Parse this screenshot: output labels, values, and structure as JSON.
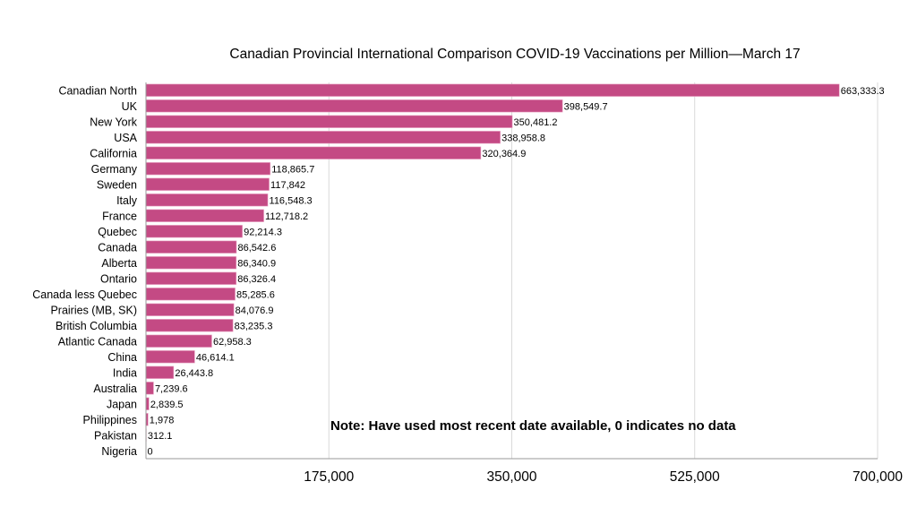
{
  "chart_data": {
    "type": "bar",
    "orientation": "horizontal",
    "title": "Canadian Provincial International Comparison COVID-19 Vaccinations per Million—March 17",
    "xlabel": "",
    "ylabel": "",
    "xlim": [
      0,
      700000
    ],
    "xticks": [
      175000,
      350000,
      525000,
      700000
    ],
    "xtick_labels": [
      "175,000",
      "350,000",
      "525,000",
      "700,000"
    ],
    "grid": "vertical",
    "bar_color": "#C44A84",
    "categories": [
      "Canadian North",
      "UK",
      "New York",
      "USA",
      "California",
      "Germany",
      "Sweden",
      "Italy",
      "France",
      "Quebec",
      "Canada",
      "Alberta",
      "Ontario",
      "Canada less Quebec",
      "Prairies (MB, SK)",
      "British Columbia",
      "Atlantic Canada",
      "China",
      "India",
      "Australia",
      "Japan",
      "Philippines",
      "Pakistan",
      "Nigeria"
    ],
    "values": [
      663333.3,
      398549.7,
      350481.2,
      338958.8,
      320364.9,
      118865.7,
      117842,
      116548.3,
      112718.2,
      92214.3,
      86542.6,
      86340.9,
      86326.4,
      85285.6,
      84076.9,
      83235.3,
      62958.3,
      46614.1,
      26443.8,
      7239.6,
      2839.5,
      1978,
      312.1,
      0
    ],
    "value_labels": [
      "663,333.3",
      "398,549.7",
      "350,481.2",
      "338,958.8",
      "320,364.9",
      "118,865.7",
      "117,842",
      "116,548.3",
      "112,718.2",
      "92,214.3",
      "86,542.6",
      "86,340.9",
      "86,326.4",
      "85,285.6",
      "84,076.9",
      "83,235.3",
      "62,958.3",
      "46,614.1",
      "26,443.8",
      "7,239.6",
      "2,839.5",
      "1,978",
      "312.1",
      "0"
    ],
    "annotation": "Note:  Have used most recent date available, 0 indicates no data"
  }
}
